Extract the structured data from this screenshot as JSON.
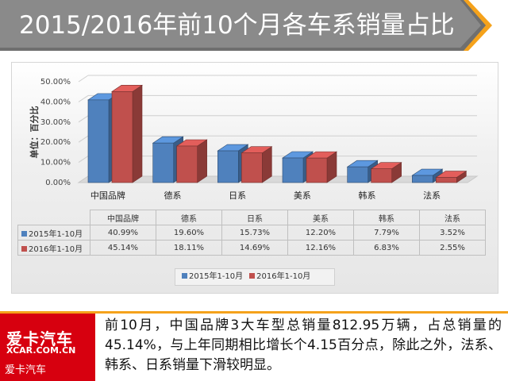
{
  "title": "2015/2016年前10个月各车系销量占比",
  "chart_data": {
    "type": "bar",
    "title": "",
    "ylabel": "单位：百分比",
    "xlabel": "",
    "ylim": [
      0,
      50
    ],
    "yticks": [
      "0.00%",
      "10.00%",
      "20.00%",
      "30.00%",
      "40.00%",
      "50.00%"
    ],
    "categories": [
      "中国品牌",
      "德系",
      "日系",
      "美系",
      "韩系",
      "法系"
    ],
    "series": [
      {
        "name": "2015年1-10月",
        "values": [
          40.99,
          19.6,
          15.73,
          12.2,
          7.79,
          3.52
        ],
        "labels": [
          "40.99%",
          "19.60%",
          "15.73%",
          "12.20%",
          "7.79%",
          "3.52%"
        ],
        "color": "#4f81bd"
      },
      {
        "name": "2016年1-10月",
        "values": [
          45.14,
          18.11,
          14.69,
          12.16,
          6.83,
          2.55
        ],
        "labels": [
          "45.14%",
          "18.11%",
          "14.69%",
          "12.16%",
          "6.83%",
          "2.55%"
        ],
        "color": "#c0504d"
      }
    ],
    "legend": "bottom",
    "grid": true,
    "style": "3d-clustered-column"
  },
  "colors": {
    "banner": "#e8e8e8",
    "banner_dark": "#7f7f7f",
    "accent": "#f5a21b",
    "logo_bg": "#d7000f"
  },
  "logo": {
    "main": "爱卡汽车",
    "domain": "XCAR.COM.CN",
    "caption": "爱卡汽车"
  },
  "body_text": "前10月，中国品牌3大车型总销量812.95万辆，占总销量的45.14%，与上年同期相比增长个4.15百分点，除此之外，法系、韩系、日系销量下滑较明显。"
}
